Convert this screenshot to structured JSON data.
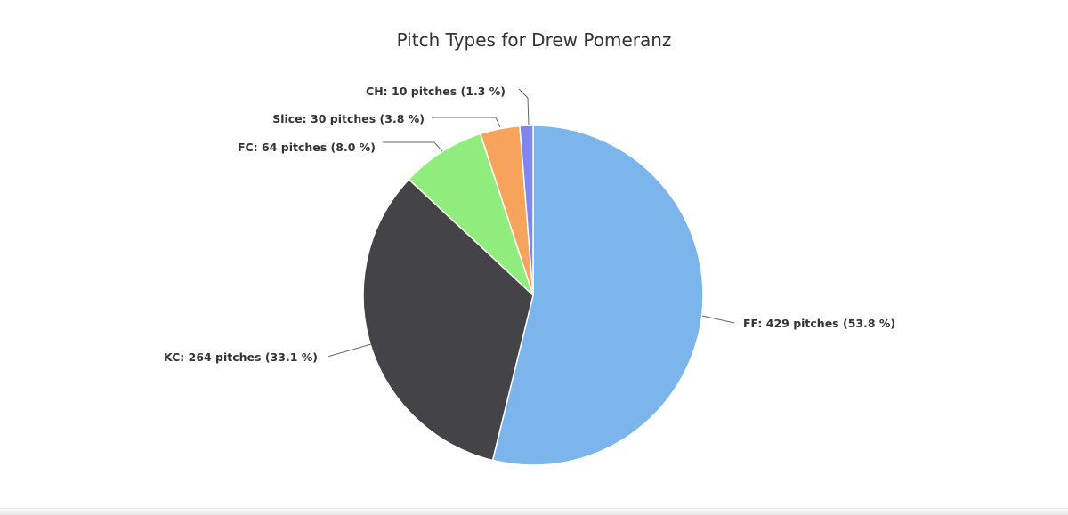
{
  "chart_data": {
    "type": "pie",
    "title": "Pitch Types for Drew Pomeranz",
    "unit": "pitches",
    "slices": [
      {
        "name": "FF",
        "value": 429,
        "percent": 53.8,
        "color": "#7cb5ec",
        "label": "FF: 429 pitches (53.8 %)"
      },
      {
        "name": "KC",
        "value": 264,
        "percent": 33.1,
        "color": "#434348",
        "label": "KC: 264 pitches (33.1 %)"
      },
      {
        "name": "FC",
        "value": 64,
        "percent": 8.0,
        "color": "#90ed7d",
        "label": "FC: 64 pitches (8.0 %)"
      },
      {
        "name": "Slice",
        "value": 30,
        "percent": 3.8,
        "color": "#f7a35c",
        "label": "Slice: 30 pitches (3.8 %)"
      },
      {
        "name": "CH",
        "value": 10,
        "percent": 1.3,
        "color": "#8085e9",
        "label": "CH: 10 pitches (1.3 %)"
      }
    ],
    "legend": "none (data labels with connectors)"
  }
}
